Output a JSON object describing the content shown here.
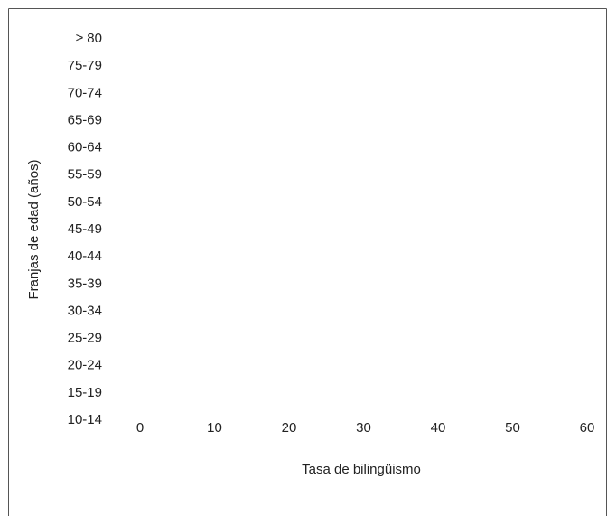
{
  "chart_data": {
    "type": "bar",
    "orientation": "horizontal",
    "x_label": "Tasa de bilingüismo",
    "y_label": "Franjas de edad (años)",
    "categories": [
      "≥ 80",
      "75-79",
      "70-74",
      "65-69",
      "60-64",
      "55-59",
      "50-54",
      "45-49",
      "40-44",
      "35-39",
      "30-34",
      "25-29",
      "20-24",
      "15-19",
      "10-14"
    ],
    "xlim": [
      0,
      60
    ],
    "xticks": [
      0,
      10,
      20,
      30,
      40,
      50,
      60
    ]
  }
}
